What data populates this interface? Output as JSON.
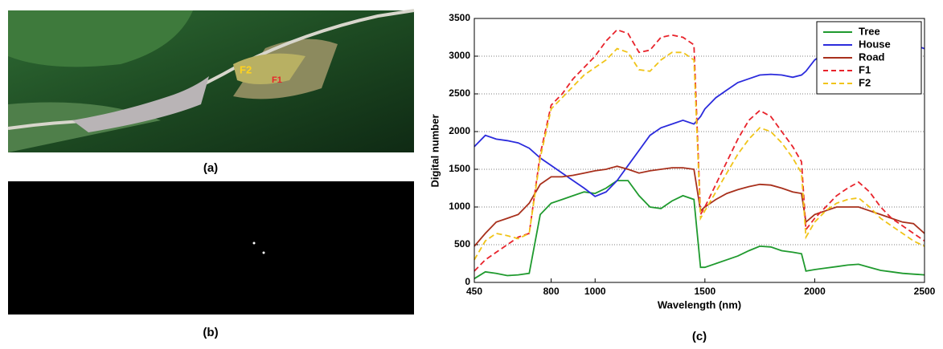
{
  "panels": {
    "a": {
      "caption": "(a)",
      "annotations": [
        "F2",
        "F1"
      ]
    },
    "b": {
      "caption": "(b)"
    }
  },
  "chart_data": {
    "type": "line",
    "caption": "(c)",
    "x_label": "Wavelength (nm)",
    "y_label": "Digital number",
    "x": [
      450,
      500,
      550,
      600,
      650,
      700,
      750,
      800,
      850,
      900,
      950,
      1000,
      1050,
      1100,
      1150,
      1200,
      1250,
      1300,
      1350,
      1400,
      1450,
      1480,
      1500,
      1550,
      1600,
      1650,
      1700,
      1750,
      1800,
      1850,
      1900,
      1940,
      1960,
      2000,
      2050,
      2100,
      2150,
      2200,
      2250,
      2300,
      2350,
      2400,
      2450,
      2500
    ],
    "xlim": [
      450,
      2500
    ],
    "xticks": [
      450,
      800,
      1000,
      1500,
      2000,
      2500
    ],
    "ylim": [
      0,
      3500
    ],
    "yticks": [
      0,
      500,
      1000,
      1500,
      2000,
      2500,
      3000,
      3500
    ],
    "grid": true,
    "legend": "upper right",
    "series": [
      {
        "name": "Tree",
        "color": "#1f9a2e",
        "style": "solid",
        "values": [
          50,
          140,
          120,
          90,
          100,
          120,
          900,
          1050,
          1100,
          1150,
          1200,
          1180,
          1250,
          1350,
          1350,
          1150,
          1000,
          980,
          1080,
          1150,
          1100,
          200,
          200,
          250,
          300,
          350,
          420,
          480,
          470,
          420,
          400,
          380,
          150,
          170,
          190,
          210,
          230,
          240,
          200,
          160,
          140,
          120,
          110,
          100
        ]
      },
      {
        "name": "House",
        "color": "#2b2bdc",
        "style": "solid",
        "values": [
          1800,
          1950,
          1900,
          1880,
          1850,
          1780,
          1650,
          1550,
          1450,
          1350,
          1250,
          1140,
          1200,
          1350,
          1550,
          1750,
          1950,
          2050,
          2100,
          2150,
          2100,
          2200,
          2300,
          2450,
          2550,
          2650,
          2700,
          2750,
          2760,
          2750,
          2720,
          2750,
          2800,
          2950,
          3050,
          3000,
          3050,
          3020,
          3030,
          3020,
          3030,
          3050,
          3150,
          3100
        ]
      },
      {
        "name": "Road",
        "color": "#a8301c",
        "style": "solid",
        "values": [
          480,
          650,
          800,
          850,
          900,
          1050,
          1300,
          1400,
          1400,
          1420,
          1450,
          1480,
          1500,
          1540,
          1500,
          1450,
          1480,
          1500,
          1520,
          1520,
          1500,
          950,
          1000,
          1100,
          1180,
          1230,
          1270,
          1300,
          1290,
          1250,
          1200,
          1180,
          800,
          900,
          950,
          1000,
          1000,
          1000,
          950,
          900,
          850,
          800,
          780,
          650
        ]
      },
      {
        "name": "F1",
        "color": "#e8232b",
        "style": "dashed",
        "values": [
          150,
          300,
          400,
          500,
          600,
          650,
          1700,
          2350,
          2500,
          2700,
          2850,
          3000,
          3200,
          3350,
          3300,
          3050,
          3080,
          3250,
          3280,
          3250,
          3150,
          900,
          1000,
          1300,
          1600,
          1900,
          2150,
          2280,
          2200,
          2000,
          1800,
          1600,
          700,
          850,
          1000,
          1150,
          1250,
          1330,
          1200,
          1000,
          850,
          750,
          650,
          550
        ]
      },
      {
        "name": "F2",
        "color": "#f0c419",
        "style": "dashed",
        "values": [
          300,
          550,
          650,
          620,
          580,
          650,
          1650,
          2300,
          2450,
          2600,
          2750,
          2850,
          2950,
          3100,
          3050,
          2820,
          2800,
          2950,
          3050,
          3050,
          2950,
          850,
          950,
          1200,
          1450,
          1700,
          1900,
          2050,
          2000,
          1850,
          1650,
          1450,
          600,
          800,
          950,
          1050,
          1100,
          1120,
          1000,
          850,
          750,
          650,
          550,
          480
        ]
      }
    ]
  }
}
